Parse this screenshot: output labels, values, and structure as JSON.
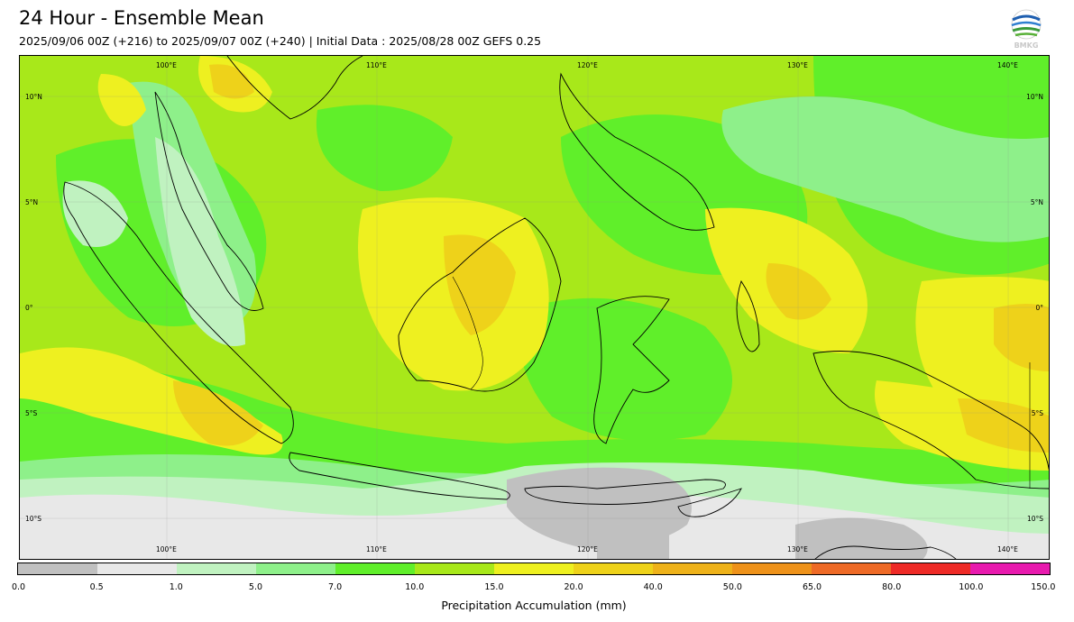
{
  "header": {
    "title": "24 Hour - Ensemble Mean",
    "subtitle": "2025/09/06 00Z (+216) to 2025/09/07 00Z (+240) | Initial Data : 2025/08/28 00Z GEFS 0.25",
    "logo_text": "BMKG"
  },
  "map": {
    "lon_labels": [
      "100°E",
      "110°E",
      "120°E",
      "130°E",
      "140°E"
    ],
    "lat_labels": [
      "10°N",
      "5°N",
      "0°",
      "5°S",
      "10°S"
    ],
    "extent": {
      "lon_min": 93,
      "lon_max": 142,
      "lat_min": -12,
      "lat_max": 12
    },
    "dominant_colors": [
      "#a8e81a",
      "#60ef2a",
      "#8ef08a",
      "#c0f2c0",
      "#e8e8e8",
      "#c0c0c0",
      "#eef020",
      "#eed21a"
    ]
  },
  "colorbar": {
    "label": "Precipitation Accumulation (mm)",
    "ticks": [
      "0.0",
      "0.5",
      "1.0",
      "5.0",
      "7.0",
      "10.0",
      "15.0",
      "20.0",
      "40.0",
      "50.0",
      "65.0",
      "80.0",
      "100.0",
      "150.0"
    ],
    "colors": [
      "#c0c0c0",
      "#e8e8e8",
      "#c0f2c0",
      "#8ef08a",
      "#60ef2a",
      "#a8e81a",
      "#eef020",
      "#eed21a",
      "#eeb21a",
      "#ee921a",
      "#ee6a26",
      "#ee2a26",
      "#e81aae"
    ]
  }
}
